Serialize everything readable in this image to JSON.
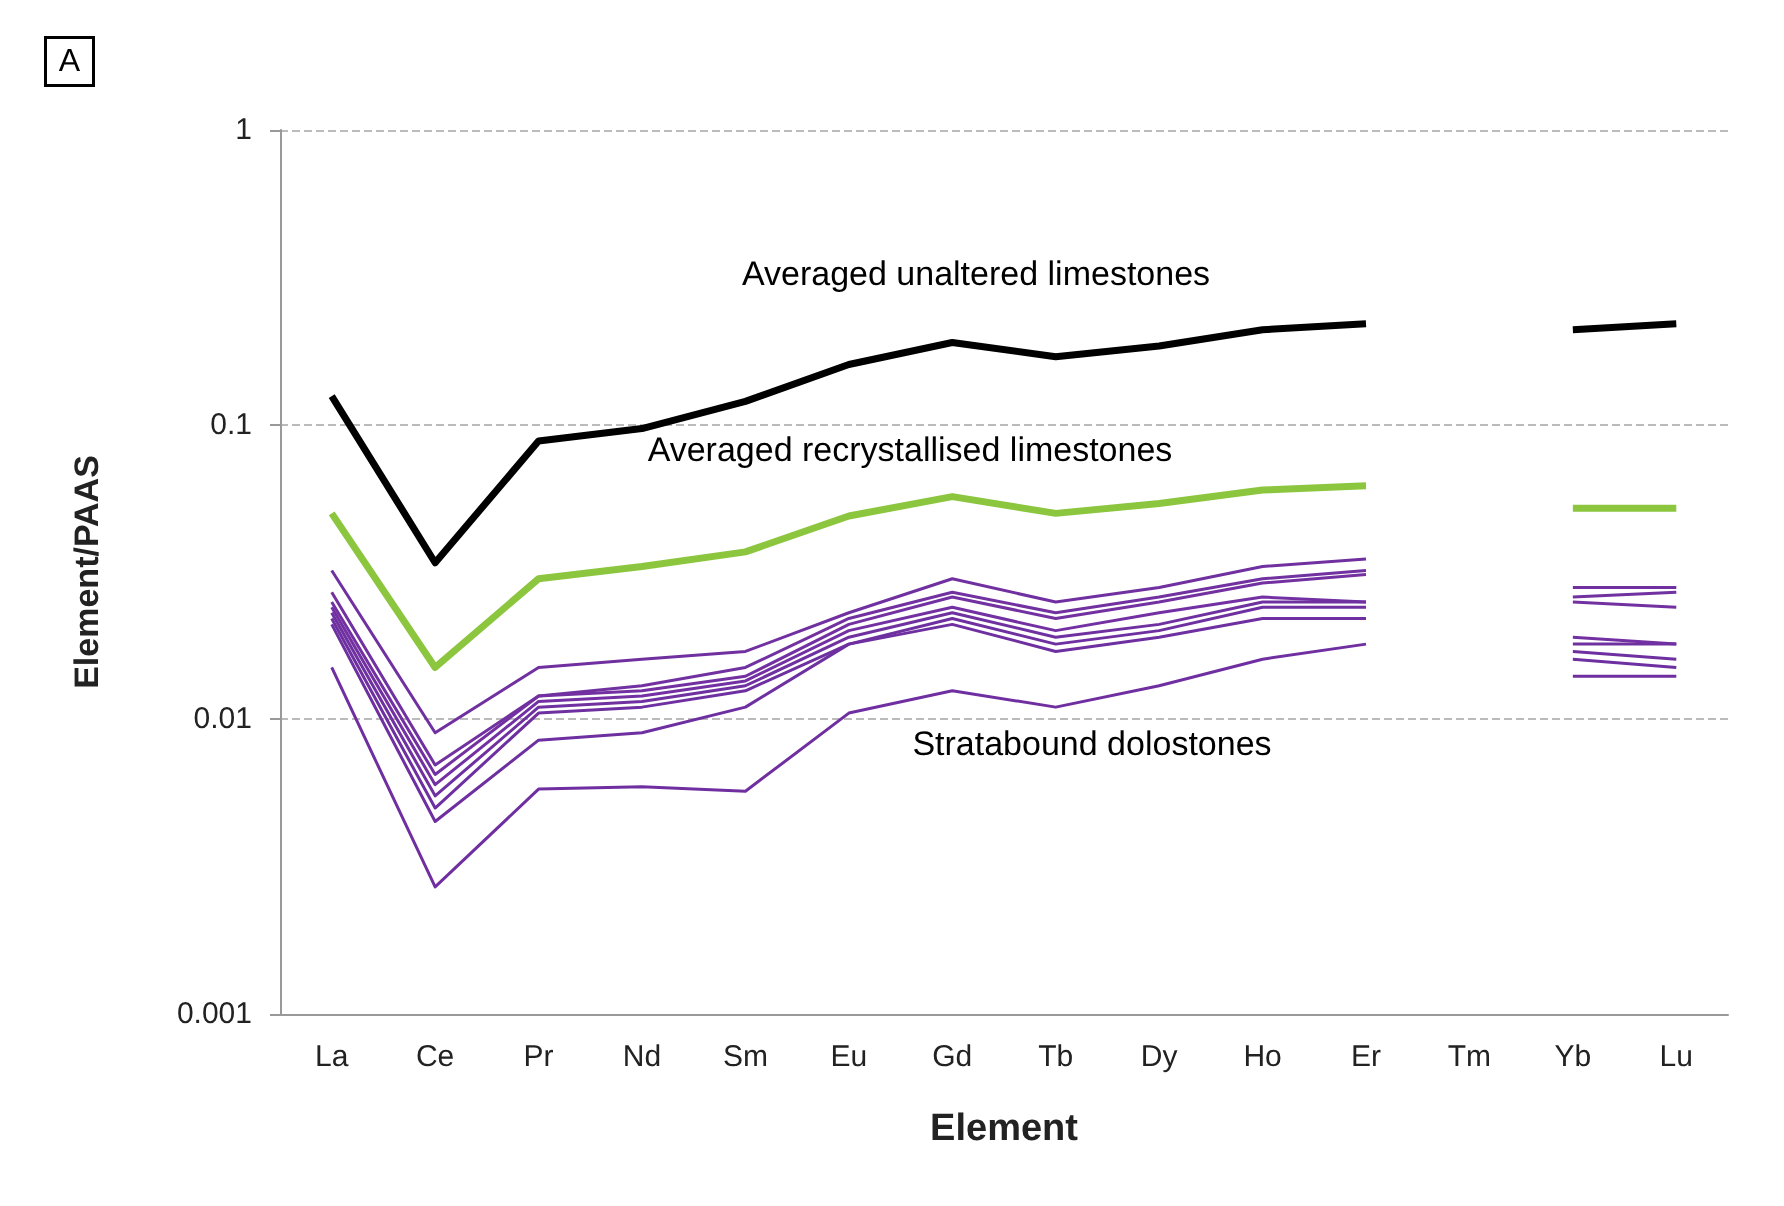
{
  "chart_data": {
    "type": "line",
    "xlabel": "Element",
    "ylabel": "Element/PAAS",
    "categories": [
      "La",
      "Ce",
      "Pr",
      "Nd",
      "Sm",
      "Eu",
      "Gd",
      "Tb",
      "Dy",
      "Ho",
      "Er",
      "Tm",
      "Yb",
      "Lu"
    ],
    "log": true,
    "ylim": [
      0.001,
      1
    ],
    "yticks": [
      0.001,
      0.01,
      0.1,
      1
    ],
    "grid": "y",
    "marker": "none",
    "line_style": "solid",
    "series": [
      {
        "color": "#000000",
        "values": [
          0.125,
          0.034,
          0.088,
          0.097,
          0.12,
          0.16,
          0.19,
          0.17,
          0.185,
          0.21,
          0.22,
          null,
          0.21,
          0.22
        ]
      },
      {
        "color": "#8cc63f",
        "values": [
          0.05,
          0.015,
          0.03,
          0.033,
          0.037,
          0.049,
          0.057,
          0.05,
          0.054,
          0.06,
          0.062,
          null,
          0.052,
          0.052
        ]
      },
      {
        "color": "#7030a0",
        "values": [
          0.032,
          0.009,
          0.015,
          0.016,
          0.017,
          0.023,
          0.03,
          0.025,
          0.028,
          0.033,
          0.035,
          null,
          0.028,
          0.028
        ]
      },
      {
        "color": "#7131a0",
        "values": [
          0.027,
          0.007,
          0.012,
          0.013,
          0.015,
          0.022,
          0.027,
          0.023,
          0.026,
          0.03,
          0.032,
          null,
          0.026,
          0.027
        ]
      },
      {
        "color": "#7230a1",
        "values": [
          0.025,
          0.0065,
          0.012,
          0.0125,
          0.014,
          0.021,
          0.026,
          0.022,
          0.025,
          0.029,
          0.031,
          null,
          0.025,
          0.024
        ]
      },
      {
        "color": "#7330a2",
        "values": [
          0.024,
          0.006,
          0.0115,
          0.012,
          0.0135,
          0.02,
          0.024,
          0.02,
          0.023,
          0.026,
          0.025,
          null,
          0.019,
          0.018
        ]
      },
      {
        "color": "#6f30a0",
        "values": [
          0.023,
          0.0055,
          0.011,
          0.0115,
          0.013,
          0.019,
          0.023,
          0.019,
          0.021,
          0.025,
          0.025,
          null,
          0.018,
          0.018
        ]
      },
      {
        "color": "#6e30a0",
        "values": [
          0.022,
          0.005,
          0.0105,
          0.011,
          0.0125,
          0.018,
          0.022,
          0.018,
          0.02,
          0.024,
          0.024,
          null,
          0.017,
          0.016
        ]
      },
      {
        "color": "#6e2fa0",
        "values": [
          0.021,
          0.0045,
          0.0085,
          0.009,
          0.011,
          0.018,
          0.021,
          0.017,
          0.019,
          0.022,
          0.022,
          null,
          0.016,
          0.015
        ]
      },
      {
        "color": "#702fa1",
        "values": [
          0.015,
          0.0027,
          0.0058,
          0.0059,
          0.0057,
          0.0105,
          0.0125,
          0.011,
          0.013,
          0.016,
          0.018,
          null,
          0.014,
          0.014
        ]
      }
    ],
    "annotations": [
      "A",
      "Averaged unaltered limestones",
      "Averaged recrystallised limestones",
      "Stratabound dolostones"
    ]
  }
}
